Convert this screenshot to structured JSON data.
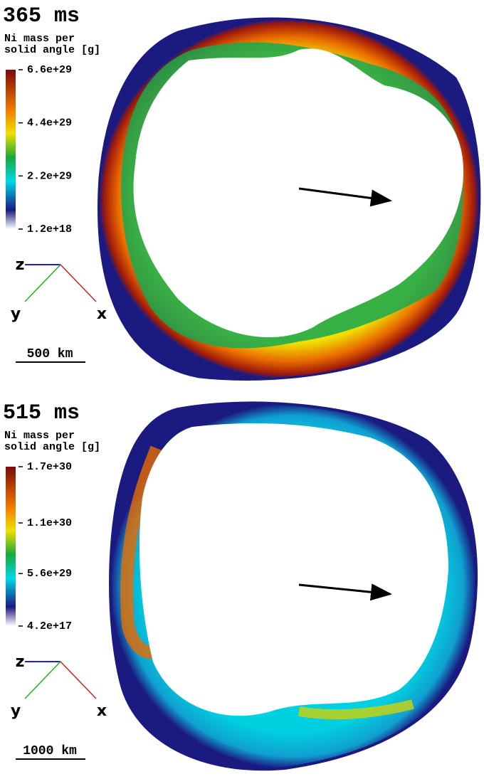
{
  "panels": [
    {
      "time": "365 ms",
      "colorbar": {
        "label_lines": [
          "Ni mass per",
          "solid angle [g]"
        ],
        "clim": [
          1.2e+18,
          6.6e+29
        ],
        "ticks": [
          {
            "value": 6.6e+29,
            "label": "6.6e+29"
          },
          {
            "value": 4.4e+29,
            "label": "4.4e+29"
          },
          {
            "value": 2.2e+29,
            "label": "2.2e+29"
          },
          {
            "value": 1.2e+18,
            "label": "1.2e+18"
          }
        ]
      },
      "axes": {
        "z": "z",
        "y": "y",
        "x": "x"
      },
      "scale": "500 km"
    },
    {
      "time": "515 ms",
      "colorbar": {
        "label_lines": [
          "Ni mass per",
          "solid angle [g]"
        ],
        "clim": [
          4.2e+17,
          1.7e+30
        ],
        "ticks": [
          {
            "value": 1.7e+30,
            "label": "1.7e+30"
          },
          {
            "value": 1.1e+30,
            "label": "1.1e+30"
          },
          {
            "value": 5.6e+29,
            "label": "5.6e+29"
          },
          {
            "value": 4.2e+17,
            "label": "4.2e+17"
          }
        ]
      },
      "axes": {
        "z": "z",
        "y": "y",
        "x": "x"
      },
      "scale": "1000 km"
    }
  ]
}
